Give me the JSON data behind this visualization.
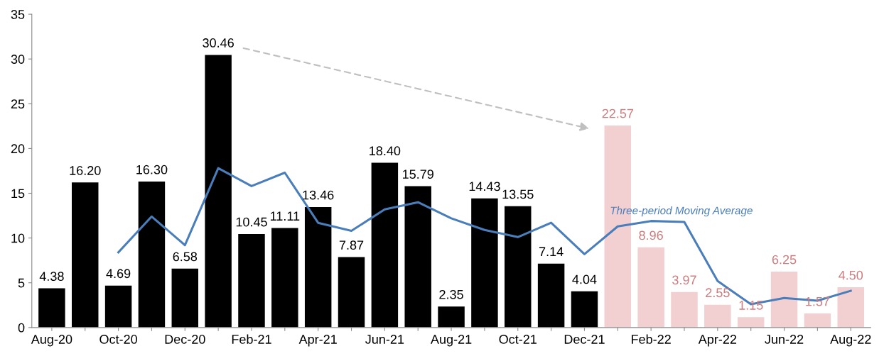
{
  "chart_data": {
    "type": "bar",
    "categories": [
      "Aug-20",
      null,
      "Oct-20",
      null,
      "Dec-20",
      null,
      "Feb-21",
      null,
      "Apr-21",
      null,
      "Jun-21",
      null,
      "Aug-21",
      null,
      "Oct-21",
      null,
      "Dec-21",
      null,
      "Feb-22",
      null,
      "Apr-22",
      null,
      "Jun-22",
      null,
      "Aug-22"
    ],
    "series": [
      {
        "colors": [
          "#000000",
          "#000000",
          "#000000",
          "#000000",
          "#000000",
          "#000000",
          "#000000",
          "#000000",
          "#000000",
          "#000000",
          "#000000",
          "#000000",
          "#000000",
          "#000000",
          "#000000",
          "#000000",
          "#000000",
          "#f2cfd0",
          "#f2cfd0",
          "#f2cfd0",
          "#f2cfd0",
          "#f2cfd0",
          "#f2cfd0",
          "#f2cfd0",
          "#f2cfd0"
        ],
        "values": [
          4.38,
          16.2,
          4.69,
          16.3,
          6.58,
          30.46,
          10.45,
          11.11,
          13.46,
          7.87,
          18.4,
          15.79,
          2.35,
          14.43,
          13.55,
          7.14,
          4.04,
          22.57,
          8.96,
          3.97,
          2.55,
          1.15,
          6.25,
          1.57,
          4.5
        ],
        "value_labels": [
          "4.38",
          "16.20",
          "4.69",
          "16.30",
          "6.58",
          "30.46",
          "10.45",
          "11.11",
          "13.46",
          "7.87",
          "18.40",
          "15.79",
          "2.35",
          "14.43",
          "13.55",
          "7.14",
          "4.04",
          "22.57",
          "8.96",
          "3.97",
          "2.55",
          "1.15",
          "6.25",
          "1.57",
          "4.50"
        ]
      },
      {
        "type": "line",
        "name": "Three-period Moving Average",
        "color": "#4a7ebb",
        "values": [
          null,
          null,
          8.4,
          12.4,
          9.2,
          17.8,
          15.8,
          17.3,
          11.7,
          10.8,
          13.2,
          14.0,
          12.2,
          10.9,
          10.1,
          11.7,
          8.2,
          11.3,
          11.9,
          11.8,
          5.2,
          2.6,
          3.3,
          3.0,
          4.1
        ]
      }
    ],
    "ylim": [
      0,
      35
    ],
    "yticks": [
      0,
      5,
      10,
      15,
      20,
      25,
      30,
      35
    ],
    "grid": false,
    "legend": false
  }
}
